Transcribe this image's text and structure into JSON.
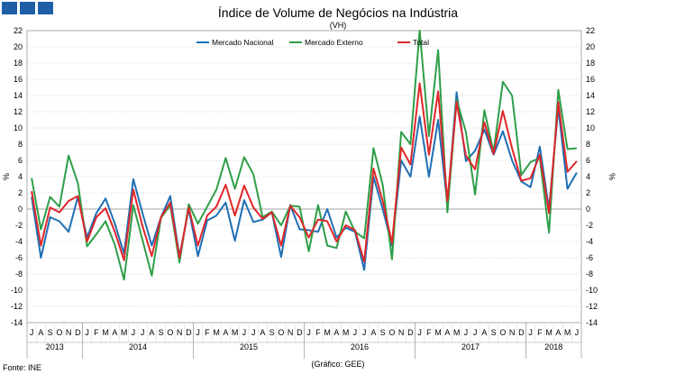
{
  "header": {
    "title": "Índice de Volume de Negócios na Indústria",
    "subtitle": "(VH)"
  },
  "footer": {
    "source": "Fonte: INE",
    "note": "(Gráfico: GEE)"
  },
  "chart_data": {
    "type": "line",
    "title": "Índice de Volume de Negócios na Indústria",
    "subtitle": "(VH)",
    "ylabel_left": "%",
    "ylabel_right": "%",
    "ylim": [
      -14,
      22
    ],
    "yticks": [
      -14,
      -12,
      -10,
      -8,
      -6,
      -4,
      -2,
      0,
      2,
      4,
      6,
      8,
      10,
      12,
      14,
      16,
      18,
      20,
      22
    ],
    "grid": true,
    "legend": "top-center",
    "months": [
      "J",
      "A",
      "S",
      "O",
      "N",
      "D",
      "J",
      "F",
      "M",
      "A",
      "M",
      "J",
      "J",
      "A",
      "S",
      "O",
      "N",
      "D",
      "J",
      "F",
      "M",
      "A",
      "M",
      "J",
      "J",
      "A",
      "S",
      "O",
      "N",
      "D",
      "J",
      "F",
      "M",
      "A",
      "M",
      "J",
      "J",
      "A",
      "S",
      "O",
      "N",
      "D",
      "J",
      "F",
      "M",
      "A",
      "M",
      "J",
      "J",
      "A",
      "S",
      "O",
      "N",
      "D",
      "J",
      "F",
      "M",
      "A",
      "M",
      "J"
    ],
    "years": [
      {
        "label": "2013",
        "start": 0,
        "count": 6
      },
      {
        "label": "2014",
        "start": 6,
        "count": 12
      },
      {
        "label": "2015",
        "start": 18,
        "count": 12
      },
      {
        "label": "2016",
        "start": 30,
        "count": 12
      },
      {
        "label": "2017",
        "start": 42,
        "count": 12
      },
      {
        "label": "2018",
        "start": 54,
        "count": 6
      }
    ],
    "series": [
      {
        "name": "Mercado Nacional",
        "color": "#1f6fb5",
        "values": [
          1.5,
          -6,
          -1,
          -1.5,
          -2.8,
          1.5,
          -3.5,
          -0.5,
          1.3,
          -1.8,
          -5.5,
          3.7,
          -0.5,
          -4.5,
          -1,
          1.6,
          -5.8,
          0,
          -5.8,
          -1.4,
          -0.8,
          0.8,
          -3.9,
          1.1,
          -1.6,
          -1.3,
          -0.4,
          -5.9,
          0.5,
          -2.5,
          -2.6,
          -2.8,
          0,
          -3.5,
          -2.3,
          -2.8,
          -7.5,
          4,
          0,
          -4.5,
          6,
          4,
          11.4,
          4,
          11,
          0.5,
          14.4,
          5.9,
          7.2,
          9.8,
          6.7,
          9.6,
          6,
          3.4,
          2.7,
          7.7,
          0,
          12.5,
          2.5,
          4.5
        ]
      },
      {
        "name": "Mercado Externo",
        "color": "#2e9e48",
        "values": [
          3.8,
          -2.5,
          1.5,
          0.3,
          6.6,
          3.2,
          -4.6,
          -3.1,
          -1.5,
          -4.4,
          -8.7,
          0.5,
          -3.8,
          -8.2,
          -1.1,
          0.5,
          -6.6,
          0.6,
          -1.8,
          0.3,
          2.4,
          6.3,
          2.5,
          6.4,
          4.3,
          -1,
          -0.3,
          -2,
          0.4,
          0.3,
          -5.2,
          0.5,
          -4.5,
          -4.8,
          -0.3,
          -2.8,
          -3.6,
          7.5,
          3,
          -6.2,
          9.5,
          8,
          22,
          9,
          19.6,
          -0.4,
          13.5,
          9.5,
          1.8,
          12.2,
          7,
          15.7,
          14,
          4.2,
          5.8,
          6.3,
          -2.9,
          14.7,
          7.4,
          7.5
        ]
      },
      {
        "name": "Total",
        "color": "#e0262a",
        "values": [
          2.2,
          -4.5,
          0.2,
          -0.4,
          1,
          1.6,
          -4,
          -1,
          0.1,
          -2.8,
          -6.3,
          2.4,
          -2.1,
          -5.8,
          -1,
          0.8,
          -6,
          0.2,
          -4.5,
          -0.8,
          0.3,
          3,
          -0.8,
          2.9,
          0.2,
          -1.2,
          -0.4,
          -4.5,
          0.4,
          -1,
          -3.5,
          -1.3,
          -1.5,
          -4,
          -2,
          -2.6,
          -6.5,
          5,
          1,
          -4.2,
          7.6,
          5.5,
          15.5,
          6.7,
          14.5,
          1,
          13.2,
          6.6,
          4.9,
          10.7,
          6.8,
          12.1,
          7.5,
          3.5,
          3.8,
          6.7,
          -0.5,
          13.2,
          4.6,
          5.9
        ]
      }
    ]
  }
}
